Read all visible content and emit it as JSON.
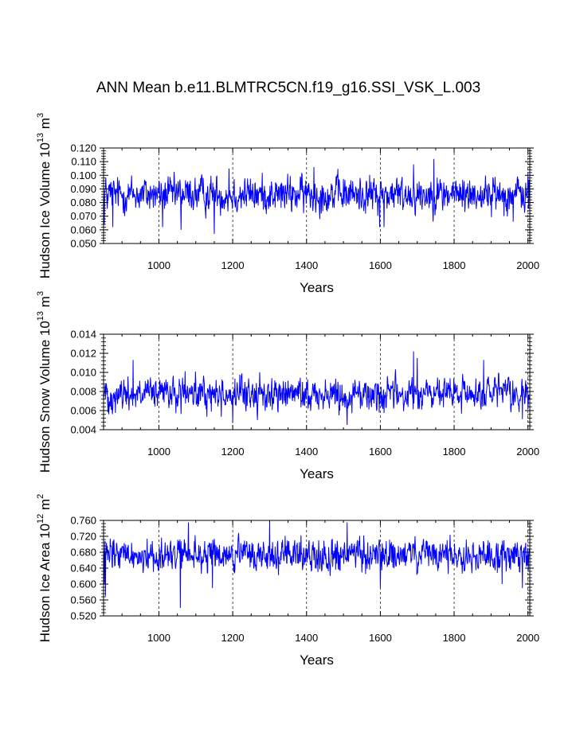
{
  "figure_title": "ANN Mean b.e11.BLMTRC5CN.f19_g16.SSI_VSK_L.003",
  "colors": {
    "series": "#0000ff",
    "axes": "#000000",
    "grid": "#000000",
    "background": "#ffffff"
  },
  "chart_data": [
    {
      "type": "line",
      "name": "hudson-ice-volume",
      "ylabel": {
        "main": "Hudson Ice Volume 10",
        "exp": "13",
        "unit": " m",
        "unit_exp": "3"
      },
      "xlabel": "Years",
      "xlim": [
        850,
        2005
      ],
      "ylim": [
        0.05,
        0.12
      ],
      "xticks": [
        1000,
        1200,
        1400,
        1600,
        1800,
        2000
      ],
      "xtick_labels": [
        "1000",
        "1200",
        "1400",
        "1600",
        "1800",
        "2000"
      ],
      "yticks": [
        0.05,
        0.06,
        0.07,
        0.08,
        0.09,
        0.1,
        0.11,
        0.12
      ],
      "ytick_labels": [
        "0.050",
        "0.060",
        "0.070",
        "0.080",
        "0.090",
        "0.100",
        "0.110",
        "0.120"
      ],
      "grid": "vertical dashed at labeled x ticks",
      "series": {
        "name": "Ice Volume",
        "x_start": 850,
        "x_end": 2005,
        "step": 1,
        "mean": 0.086,
        "spread": 0.0085,
        "features": [
          {
            "x": 850,
            "y": 0.065
          },
          {
            "x": 852,
            "y": 0.064
          },
          {
            "x": 875,
            "y": 0.062
          },
          {
            "x": 1010,
            "y": 0.062
          },
          {
            "x": 1060,
            "y": 0.06
          },
          {
            "x": 1150,
            "y": 0.057
          },
          {
            "x": 1190,
            "y": 0.105
          },
          {
            "x": 1420,
            "y": 0.106
          },
          {
            "x": 1598,
            "y": 0.062
          },
          {
            "x": 1610,
            "y": 0.062
          },
          {
            "x": 1690,
            "y": 0.108
          },
          {
            "x": 1745,
            "y": 0.112
          },
          {
            "x": 1960,
            "y": 0.066
          }
        ]
      }
    },
    {
      "type": "line",
      "name": "hudson-snow-volume",
      "ylabel": {
        "main": "Hudson Snow Volume 10",
        "exp": "13",
        "unit": " m",
        "unit_exp": "3"
      },
      "xlabel": "Years",
      "xlim": [
        850,
        2005
      ],
      "ylim": [
        0.004,
        0.014
      ],
      "xticks": [
        1000,
        1200,
        1400,
        1600,
        1800,
        2000
      ],
      "xtick_labels": [
        "1000",
        "1200",
        "1400",
        "1600",
        "1800",
        "2000"
      ],
      "yticks": [
        0.004,
        0.006,
        0.008,
        0.01,
        0.012,
        0.014
      ],
      "ytick_labels": [
        "0.004",
        "0.006",
        "0.008",
        "0.010",
        "0.012",
        "0.014"
      ],
      "grid": "vertical dashed at labeled x ticks",
      "series": {
        "name": "Snow Volume",
        "x_start": 850,
        "x_end": 2005,
        "step": 1,
        "mean": 0.0077,
        "spread": 0.00115,
        "features": [
          {
            "x": 930,
            "y": 0.0113
          },
          {
            "x": 1200,
            "y": 0.0047
          },
          {
            "x": 1510,
            "y": 0.0045
          },
          {
            "x": 1690,
            "y": 0.0122
          },
          {
            "x": 1700,
            "y": 0.0115
          },
          {
            "x": 1880,
            "y": 0.0113
          },
          {
            "x": 1985,
            "y": 0.0051
          }
        ]
      }
    },
    {
      "type": "line",
      "name": "hudson-ice-area",
      "ylabel": {
        "main": "Hudson Ice Area 10",
        "exp": "12",
        "unit": " m",
        "unit_exp": "2"
      },
      "xlabel": "Years",
      "xlim": [
        850,
        2005
      ],
      "ylim": [
        0.52,
        0.76
      ],
      "xticks": [
        1000,
        1200,
        1400,
        1600,
        1800,
        2000
      ],
      "xtick_labels": [
        "1000",
        "1200",
        "1400",
        "1600",
        "1800",
        "2000"
      ],
      "yticks": [
        0.52,
        0.56,
        0.6,
        0.64,
        0.68,
        0.72,
        0.76
      ],
      "ytick_labels": [
        "0.520",
        "0.560",
        "0.600",
        "0.640",
        "0.680",
        "0.720",
        "0.760"
      ],
      "grid": "vertical dashed at labeled x ticks",
      "series": {
        "name": "Ice Area",
        "x_start": 850,
        "x_end": 2005,
        "step": 1,
        "mean": 0.672,
        "spread": 0.027,
        "features": [
          {
            "x": 852,
            "y": 0.6
          },
          {
            "x": 855,
            "y": 0.57
          },
          {
            "x": 1058,
            "y": 0.54
          },
          {
            "x": 1145,
            "y": 0.59
          },
          {
            "x": 1080,
            "y": 0.755
          },
          {
            "x": 1300,
            "y": 0.755
          },
          {
            "x": 1510,
            "y": 0.755
          },
          {
            "x": 1600,
            "y": 0.59
          },
          {
            "x": 1930,
            "y": 0.6
          },
          {
            "x": 1985,
            "y": 0.59
          }
        ]
      }
    }
  ]
}
